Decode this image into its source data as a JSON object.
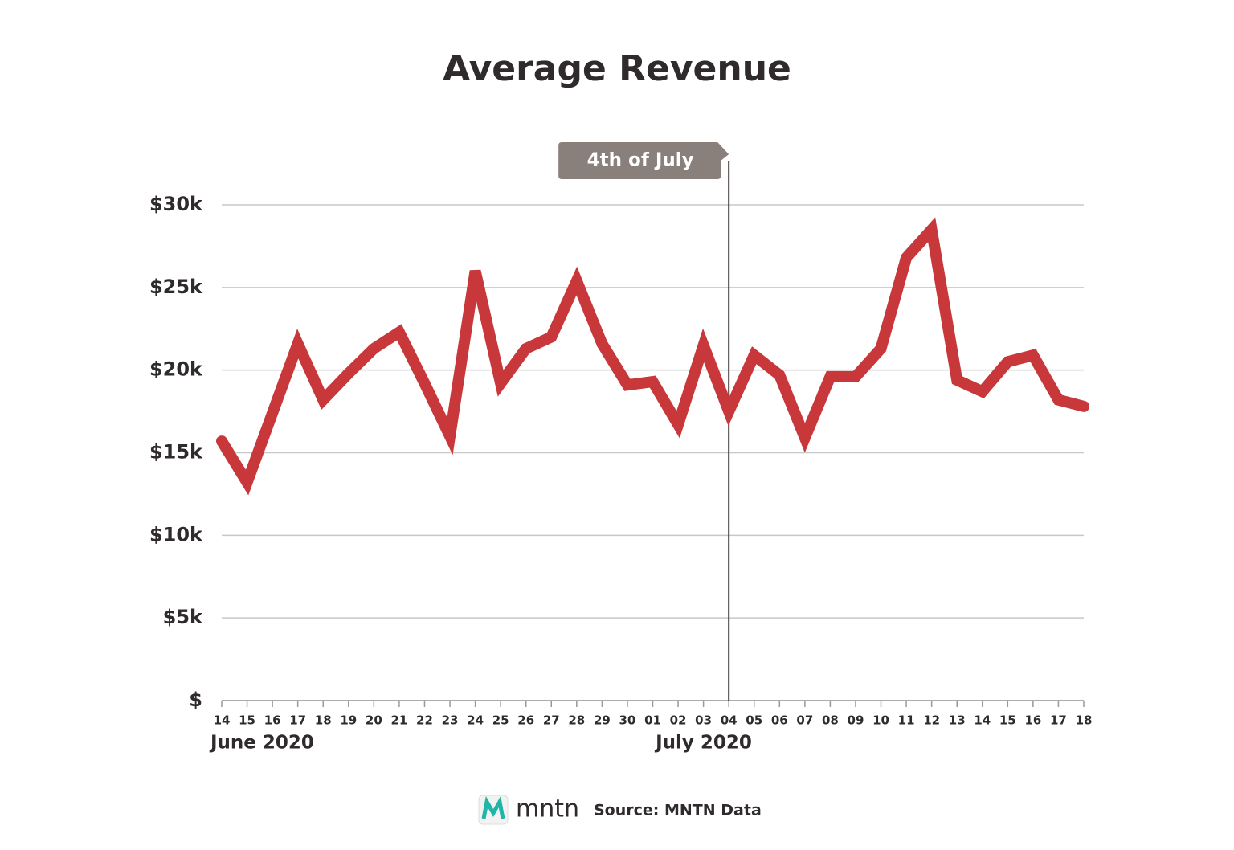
{
  "chart_data": {
    "type": "line",
    "title": "Average Revenue",
    "categories": [
      "14",
      "15",
      "16",
      "17",
      "18",
      "19",
      "20",
      "21",
      "22",
      "23",
      "24",
      "25",
      "26",
      "27",
      "28",
      "29",
      "30",
      "01",
      "02",
      "03",
      "04",
      "05",
      "06",
      "07",
      "08",
      "09",
      "10",
      "11",
      "12",
      "13",
      "14",
      "15",
      "16",
      "17",
      "18"
    ],
    "values": [
      15700,
      13200,
      17400,
      21600,
      18200,
      19800,
      21300,
      22300,
      19200,
      16000,
      26000,
      19200,
      21300,
      22000,
      25400,
      21600,
      19100,
      19300,
      16700,
      21500,
      17500,
      20900,
      19700,
      15900,
      19600,
      19600,
      21300,
      26800,
      28500,
      19400,
      18700,
      20500,
      20900,
      18200,
      17800
    ],
    "color": "#c8373a",
    "ylim": [
      0,
      30000
    ],
    "yticks": [
      {
        "value": 0,
        "label": "$"
      },
      {
        "value": 5000,
        "label": "$5k"
      },
      {
        "value": 10000,
        "label": "$10k"
      },
      {
        "value": 15000,
        "label": "$15k"
      },
      {
        "value": 20000,
        "label": "$20k"
      },
      {
        "value": 25000,
        "label": "$25k"
      },
      {
        "value": 30000,
        "label": "$30k"
      }
    ],
    "grid": true,
    "x_groups": [
      "June 2020",
      "July 2020"
    ],
    "annotation": {
      "text": "4th of July",
      "category": "04"
    },
    "brand": "mntn",
    "source": "Source: MNTN Data"
  }
}
